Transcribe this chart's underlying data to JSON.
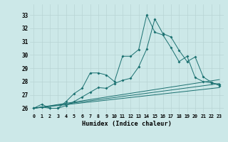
{
  "xlabel": "Humidex (Indice chaleur)",
  "xlim": [
    -0.5,
    23.5
  ],
  "ylim": [
    25.6,
    33.8
  ],
  "yticks": [
    26,
    27,
    28,
    29,
    30,
    31,
    32,
    33
  ],
  "xticks": [
    0,
    1,
    2,
    3,
    4,
    5,
    6,
    7,
    8,
    9,
    10,
    11,
    12,
    13,
    14,
    15,
    16,
    17,
    18,
    19,
    20,
    21,
    22,
    23
  ],
  "xtick_labels": [
    "0",
    "1",
    "2",
    "3",
    "4",
    "5",
    "6",
    "7",
    "8",
    "9",
    "10",
    "11",
    "12",
    "13",
    "14",
    "15",
    "16",
    "17",
    "18",
    "19",
    "20",
    "21",
    "22",
    "23"
  ],
  "background_color": "#cce8e8",
  "line_color": "#1a7070",
  "grid_color": "#b8d4d4",
  "line1_x": [
    0,
    1,
    2,
    3,
    4,
    5,
    6,
    7,
    8,
    9,
    10,
    11,
    12,
    13,
    14,
    15,
    16,
    17,
    18,
    19,
    20,
    21,
    22,
    23
  ],
  "line1_y": [
    26.0,
    26.3,
    26.0,
    26.0,
    26.5,
    27.1,
    27.5,
    28.65,
    28.65,
    28.5,
    28.0,
    29.9,
    29.9,
    30.4,
    33.0,
    31.7,
    31.5,
    30.55,
    29.5,
    29.9,
    28.3,
    28.0,
    27.9,
    27.8
  ],
  "line2_x": [
    0,
    1,
    2,
    3,
    4,
    5,
    6,
    7,
    8,
    9,
    10,
    11,
    12,
    13,
    14,
    15,
    16,
    17,
    18,
    19,
    20,
    21,
    22,
    23
  ],
  "line2_y": [
    26.0,
    26.1,
    26.0,
    26.0,
    26.2,
    26.5,
    26.85,
    27.2,
    27.55,
    27.5,
    27.85,
    28.1,
    28.25,
    29.1,
    30.45,
    32.7,
    31.6,
    31.35,
    30.35,
    29.5,
    29.85,
    28.35,
    27.95,
    27.7
  ],
  "straight_lines": [
    [
      [
        0,
        23
      ],
      [
        26.0,
        27.55
      ]
    ],
    [
      [
        0,
        23
      ],
      [
        26.0,
        27.85
      ]
    ],
    [
      [
        0,
        23
      ],
      [
        26.0,
        28.15
      ]
    ]
  ]
}
